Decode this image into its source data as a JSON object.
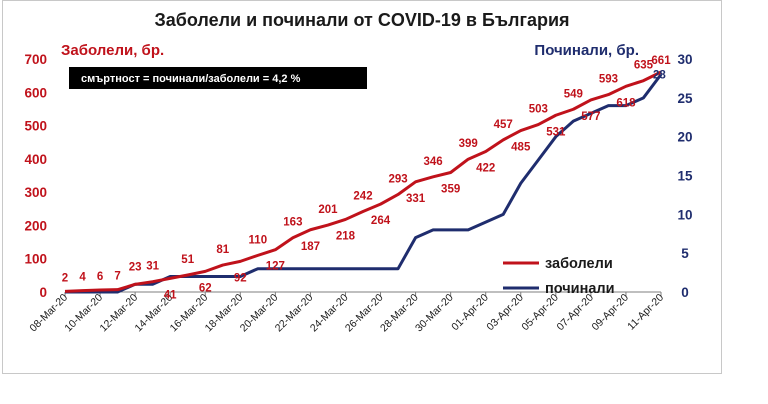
{
  "chart_data": {
    "type": "line",
    "title": "Заболели и починали от COVID-19 в България",
    "ylabel_left": "Заболели, бр.",
    "ylabel_right": "Починали, бр.",
    "ylim_left": [
      0,
      700
    ],
    "ylim_right": [
      0,
      30
    ],
    "yticks_left": [
      "0",
      "100",
      "200",
      "300",
      "400",
      "500",
      "600",
      "700"
    ],
    "yticks_right": [
      "0",
      "5",
      "10",
      "15",
      "20",
      "25",
      "30"
    ],
    "annotation": "смъртност = починали/заболели = 4,2 %",
    "legend_position": "bottom-right",
    "x": [
      "08-Mar-20",
      "09-Mar-20",
      "10-Mar-20",
      "11-Mar-20",
      "12-Mar-20",
      "13-Mar-20",
      "14-Mar-20",
      "15-Mar-20",
      "16-Mar-20",
      "17-Mar-20",
      "18-Mar-20",
      "19-Mar-20",
      "20-Mar-20",
      "21-Mar-20",
      "22-Mar-20",
      "23-Mar-20",
      "24-Mar-20",
      "25-Mar-20",
      "26-Mar-20",
      "27-Mar-20",
      "28-Mar-20",
      "29-Mar-20",
      "30-Mar-20",
      "31-Mar-20",
      "01-Apr-20",
      "02-Apr-20",
      "03-Apr-20",
      "04-Apr-20",
      "05-Apr-20",
      "06-Apr-20",
      "07-Apr-20",
      "08-Apr-20",
      "09-Apr-20",
      "10-Apr-20",
      "11-Apr-20"
    ],
    "x_tick_labels": [
      "08-Mar-20",
      "10-Mar-20",
      "12-Mar-20",
      "14-Mar-20",
      "16-Mar-20",
      "18-Mar-20",
      "20-Mar-20",
      "22-Mar-20",
      "24-Mar-20",
      "26-Mar-20",
      "28-Mar-20",
      "30-Mar-20",
      "01-Apr-20",
      "03-Apr-20",
      "05-Apr-20",
      "07-Apr-20",
      "09-Apr-20",
      "11-Apr-20"
    ],
    "series": [
      {
        "name": "заболели",
        "color": "#c0121b",
        "axis": "left",
        "values": [
          2,
          4,
          6,
          7,
          23,
          31,
          41,
          51,
          62,
          81,
          92,
          110,
          127,
          163,
          187,
          201,
          218,
          242,
          264,
          293,
          331,
          346,
          359,
          399,
          422,
          457,
          485,
          503,
          531,
          549,
          577,
          593,
          618,
          635,
          661
        ]
      },
      {
        "name": "починали",
        "color": "#1f2d6e",
        "axis": "right",
        "values": [
          0,
          0,
          0,
          0,
          1,
          1,
          2,
          2,
          2,
          2,
          2,
          3,
          3,
          3,
          3,
          3,
          3,
          3,
          3,
          3,
          7,
          8,
          8,
          8,
          9,
          10,
          14,
          17,
          20,
          22,
          23,
          24,
          24,
          25,
          28
        ]
      }
    ],
    "last_label_right": "28"
  }
}
